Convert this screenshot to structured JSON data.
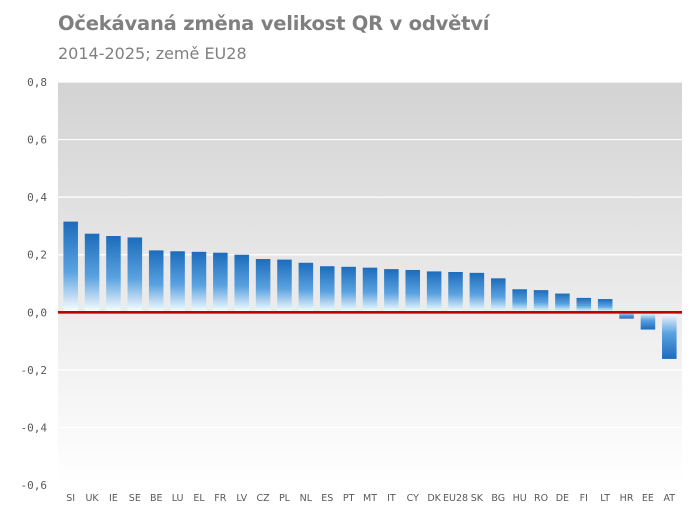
{
  "chart_data": {
    "type": "bar",
    "title": "Očekávaná změna velikost QR v odvětví",
    "subtitle": "2014-2025; země EU28",
    "xlabel": "",
    "ylabel": "",
    "ylim": [
      -0.6,
      0.8
    ],
    "yticks": [
      -0.6,
      -0.4,
      -0.2,
      0.0,
      0.2,
      0.4,
      0.6,
      0.8
    ],
    "ytick_labels": [
      "-0,6",
      "-0,4",
      "-0,2",
      "0,0",
      "0,2",
      "0,4",
      "0,6",
      "0,8"
    ],
    "grid": true,
    "legend": "none",
    "categories": [
      "SI",
      "UK",
      "IE",
      "SE",
      "BE",
      "LU",
      "EL",
      "FR",
      "LV",
      "CZ",
      "PL",
      "NL",
      "ES",
      "PT",
      "MT",
      "IT",
      "CY",
      "DK",
      "EU28",
      "SK",
      "BG",
      "HU",
      "RO",
      "DE",
      "FI",
      "LT",
      "HR",
      "EE",
      "AT"
    ],
    "values": [
      0.315,
      0.273,
      0.265,
      0.26,
      0.215,
      0.212,
      0.21,
      0.207,
      0.2,
      0.185,
      0.183,
      0.172,
      0.16,
      0.158,
      0.155,
      0.15,
      0.147,
      0.142,
      0.14,
      0.137,
      0.118,
      0.08,
      0.077,
      0.065,
      0.05,
      0.046,
      -0.022,
      -0.06,
      -0.162
    ],
    "colors": {
      "bar_top": "#1f6fbf",
      "bar_bottom": "#ffffff",
      "zero_line": "#c00000",
      "plot_bg_top": "#d6d6d6",
      "plot_bg_bottom": "#ffffff",
      "grid": "#ffffff",
      "text": "#595959",
      "title": "#7f7f7f"
    }
  }
}
